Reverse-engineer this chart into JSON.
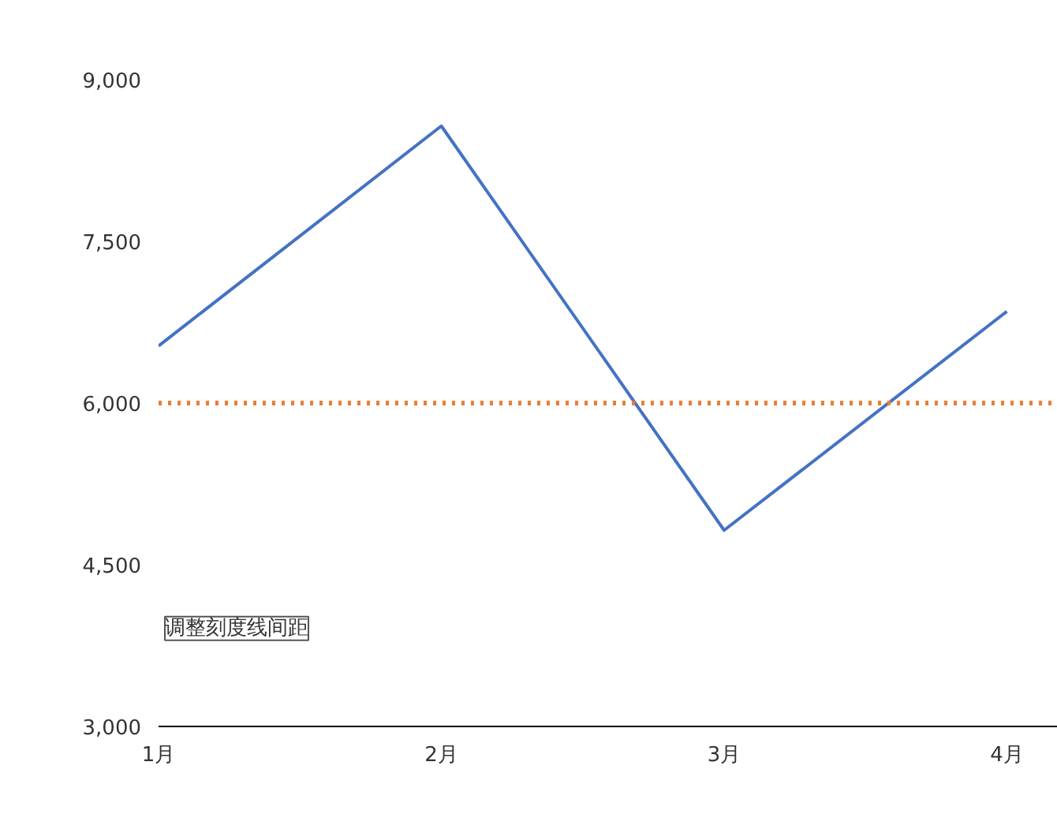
{
  "chart_data": {
    "type": "line",
    "categories": [
      "1月",
      "2月",
      "3月",
      "4月"
    ],
    "series": [
      {
        "color": "#4472c4",
        "values": [
          6530,
          8570,
          4820,
          6850
        ]
      }
    ],
    "ylim": [
      3000,
      9000
    ],
    "yticks": [
      {
        "value": 3000,
        "label": "3,000"
      },
      {
        "value": 4500,
        "label": "4,500"
      },
      {
        "value": 6000,
        "label": "6,000"
      },
      {
        "value": 7500,
        "label": "7,500"
      },
      {
        "value": 9000,
        "label": "9,000"
      }
    ],
    "ref_lines": [
      {
        "axis": "y",
        "value": 6000,
        "color": "#ed7d31",
        "line_style": "dotted"
      }
    ],
    "annotations": [
      "调整刻度线间距"
    ],
    "grid": false,
    "marker": "none",
    "line_style": "solid"
  }
}
